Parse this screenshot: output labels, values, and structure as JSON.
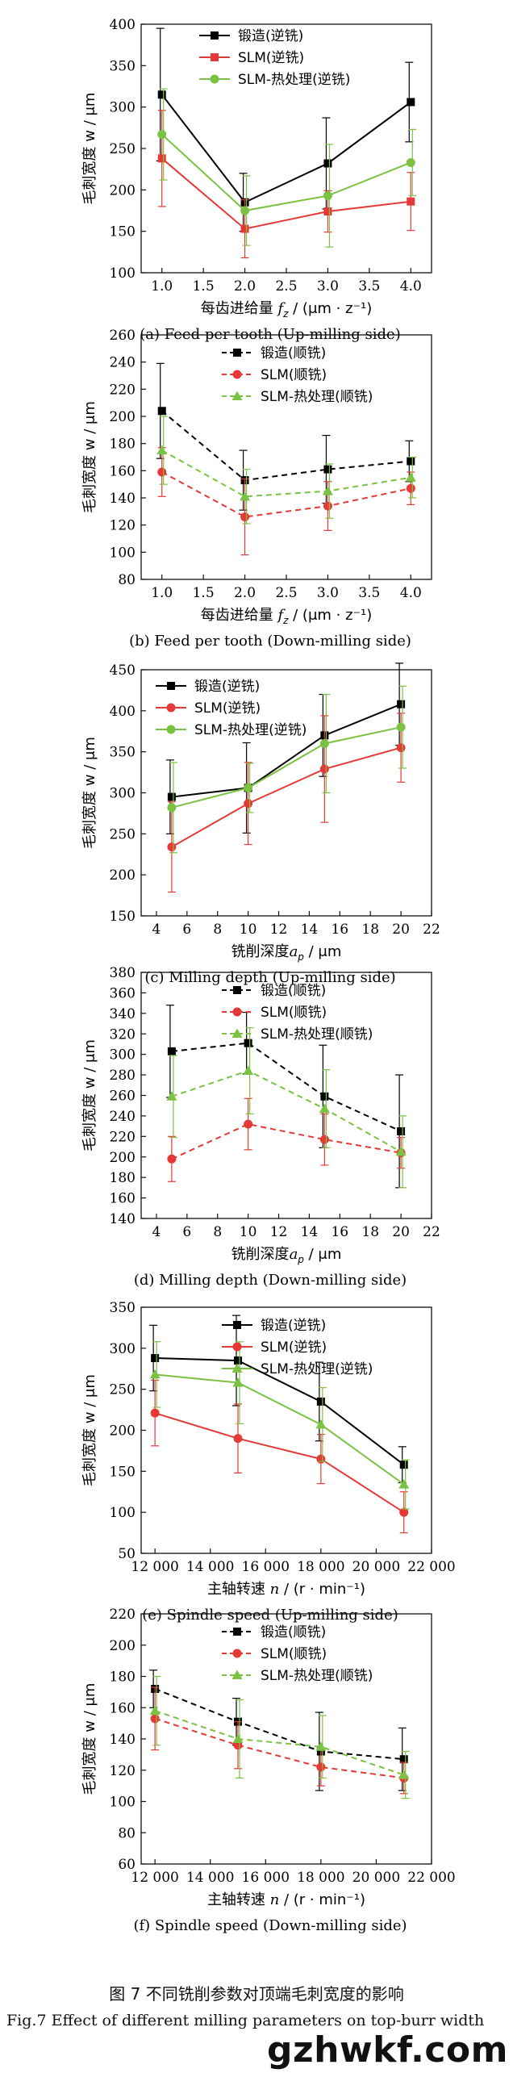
{
  "chart_data": [
    {
      "type": "line",
      "panel": "a",
      "dashed": false,
      "caption": "(a) Feed per tooth (Up-milling side)",
      "ylabel": "毛刺宽度 w / μm",
      "xlabel_pre": "每齿进给量 ",
      "xlabel_sym": "f",
      "xlabel_sub": "z",
      "xlabel_post": " / (μm · z⁻¹)",
      "x": [
        1.0,
        2.0,
        3.0,
        4.0
      ],
      "xlim": [
        0.75,
        4.25
      ],
      "xticks": [
        "1.0",
        "1.5",
        "2.0",
        "2.5",
        "3.0",
        "3.5",
        "4.0"
      ],
      "ylim": [
        100,
        400
      ],
      "yticks": [
        "100",
        "150",
        "200",
        "250",
        "300",
        "350",
        "400"
      ],
      "legend": "top-center",
      "series": [
        {
          "name": "锻造(逆铣)",
          "color": "#000000",
          "marker": "square",
          "values": [
            315,
            185,
            232,
            306
          ],
          "errors": [
            80,
            35,
            55,
            48
          ]
        },
        {
          "name": "SLM(逆铣)",
          "color": "#e53935",
          "marker": "square",
          "values": [
            238,
            153,
            174,
            186
          ],
          "errors": [
            58,
            35,
            25,
            35
          ]
        },
        {
          "name": "SLM-热处理(逆铣)",
          "color": "#7cc242",
          "marker": "circle",
          "values": [
            267,
            175,
            193,
            233
          ],
          "errors": [
            55,
            42,
            62,
            40
          ]
        }
      ]
    },
    {
      "type": "line",
      "panel": "b",
      "dashed": true,
      "caption": "(b) Feed per tooth (Down-milling side)",
      "ylabel": "毛刺宽度 w / μm",
      "xlabel_pre": "每齿进给量 ",
      "xlabel_sym": "f",
      "xlabel_sub": "z",
      "xlabel_post": " / (μm · z⁻¹)",
      "x": [
        1.0,
        2.0,
        3.0,
        4.0
      ],
      "xlim": [
        0.75,
        4.25
      ],
      "xticks": [
        "1.0",
        "1.5",
        "2.0",
        "2.5",
        "3.0",
        "3.5",
        "4.0"
      ],
      "ylim": [
        80,
        260
      ],
      "yticks": [
        "80",
        "100",
        "120",
        "140",
        "160",
        "180",
        "200",
        "220",
        "240",
        "260"
      ],
      "legend": "top-right",
      "series": [
        {
          "name": "锻造(顺铣)",
          "color": "#000000",
          "marker": "square",
          "values": [
            204,
            153,
            161,
            167
          ],
          "errors": [
            35,
            22,
            25,
            15
          ]
        },
        {
          "name": "SLM(顺铣)",
          "color": "#e53935",
          "marker": "circle",
          "values": [
            159,
            126,
            134,
            147
          ],
          "errors": [
            18,
            28,
            18,
            12
          ]
        },
        {
          "name": "SLM-热处理(顺铣)",
          "color": "#7cc242",
          "marker": "triangle",
          "values": [
            175,
            141,
            145,
            155
          ],
          "errors": [
            25,
            20,
            20,
            15
          ]
        }
      ]
    },
    {
      "type": "line",
      "panel": "c",
      "dashed": false,
      "caption": "(c) Milling depth (Up-milling side)",
      "ylabel": "毛刺宽度 w / μm",
      "xlabel_pre": "铣削深度",
      "xlabel_sym": "a",
      "xlabel_sub": "p",
      "xlabel_post": " / μm",
      "x": [
        5,
        10,
        15,
        20
      ],
      "xlim": [
        3,
        22
      ],
      "xticks": [
        "4",
        "6",
        "8",
        "10",
        "12",
        "14",
        "16",
        "18",
        "20",
        "22"
      ],
      "ylim": [
        150,
        450
      ],
      "yticks": [
        "150",
        "200",
        "250",
        "300",
        "350",
        "400",
        "450"
      ],
      "legend": "top-left",
      "series": [
        {
          "name": "锻造(逆铣)",
          "color": "#000000",
          "marker": "square",
          "values": [
            295,
            306,
            370,
            408
          ],
          "errors": [
            45,
            55,
            50,
            50
          ]
        },
        {
          "name": "SLM(逆铣)",
          "color": "#e53935",
          "marker": "circle",
          "values": [
            234,
            287,
            329,
            355
          ],
          "errors": [
            55,
            50,
            65,
            42
          ]
        },
        {
          "name": "SLM-热处理(逆铣)",
          "color": "#7cc242",
          "marker": "circle",
          "values": [
            282,
            306,
            360,
            380
          ],
          "errors": [
            55,
            30,
            60,
            50
          ]
        }
      ]
    },
    {
      "type": "line",
      "panel": "d",
      "dashed": true,
      "caption": "(d) Milling depth (Down-milling side)",
      "ylabel": "毛刺宽度 w / μm",
      "xlabel_pre": "铣削深度",
      "xlabel_sym": "a",
      "xlabel_sub": "p",
      "xlabel_post": " / μm",
      "x": [
        5,
        10,
        15,
        20
      ],
      "xlim": [
        3,
        22
      ],
      "xticks": [
        "4",
        "6",
        "8",
        "10",
        "12",
        "14",
        "16",
        "18",
        "20",
        "22"
      ],
      "ylim": [
        140,
        380
      ],
      "yticks": [
        "140",
        "160",
        "180",
        "200",
        "220",
        "240",
        "260",
        "280",
        "300",
        "320",
        "340",
        "360",
        "380"
      ],
      "legend": "top-right",
      "series": [
        {
          "name": "锻造(顺铣)",
          "color": "#000000",
          "marker": "square",
          "values": [
            303,
            311,
            259,
            225
          ],
          "errors": [
            45,
            30,
            50,
            55
          ]
        },
        {
          "name": "SLM(顺铣)",
          "color": "#e53935",
          "marker": "circle",
          "values": [
            198,
            232,
            217,
            204
          ],
          "errors": [
            22,
            25,
            25,
            15
          ]
        },
        {
          "name": "SLM-热处理(顺铣)",
          "color": "#7cc242",
          "marker": "triangle",
          "values": [
            259,
            284,
            247,
            205
          ],
          "errors": [
            40,
            42,
            38,
            35
          ]
        }
      ]
    },
    {
      "type": "line",
      "panel": "e",
      "dashed": false,
      "caption": "(e) Spindle speed (Up-milling side)",
      "ylabel": "毛刺宽度 w / μm",
      "xlabel_pre": "主轴转速 ",
      "xlabel_sym": "n",
      "xlabel_sub": "",
      "xlabel_post": " / (r · min⁻¹)",
      "x": [
        12000,
        15000,
        18000,
        21000
      ],
      "xlim": [
        11500,
        22000
      ],
      "xticks": [
        "12 000",
        "14 000",
        "16 000",
        "18 000",
        "20 000",
        "22 000"
      ],
      "ylim": [
        50,
        350
      ],
      "yticks": [
        "50",
        "100",
        "150",
        "200",
        "250",
        "300",
        "350"
      ],
      "legend": "top-right",
      "series": [
        {
          "name": "锻造(逆铣)",
          "color": "#000000",
          "marker": "square",
          "values": [
            288,
            285,
            235,
            158
          ],
          "errors": [
            40,
            55,
            48,
            22
          ]
        },
        {
          "name": "SLM(逆铣)",
          "color": "#e53935",
          "marker": "circle",
          "values": [
            221,
            190,
            165,
            100
          ],
          "errors": [
            40,
            42,
            30,
            25
          ]
        },
        {
          "name": "SLM-热处理(逆铣)",
          "color": "#7cc242",
          "marker": "triangle",
          "values": [
            268,
            258,
            207,
            134
          ],
          "errors": [
            40,
            50,
            45,
            30
          ]
        }
      ]
    },
    {
      "type": "line",
      "panel": "f",
      "dashed": true,
      "caption": "(f) Spindle speed (Down-milling side)",
      "ylabel": "毛刺宽度 w / μm",
      "xlabel_pre": "主轴转速 ",
      "xlabel_sym": "n",
      "xlabel_sub": "",
      "xlabel_post": " / (r · min⁻¹)",
      "x": [
        12000,
        15000,
        18000,
        21000
      ],
      "xlim": [
        11500,
        22000
      ],
      "xticks": [
        "12 000",
        "14 000",
        "16 000",
        "18 000",
        "20 000",
        "22 000"
      ],
      "ylim": [
        60,
        220
      ],
      "yticks": [
        "60",
        "80",
        "100",
        "120",
        "140",
        "160",
        "180",
        "200",
        "220"
      ],
      "legend": "top-right",
      "series": [
        {
          "name": "锻造(顺铣)",
          "color": "#000000",
          "marker": "square",
          "values": [
            172,
            151,
            132,
            127
          ],
          "errors": [
            12,
            15,
            25,
            20
          ]
        },
        {
          "name": "SLM(顺铣)",
          "color": "#e53935",
          "marker": "circle",
          "values": [
            153,
            136,
            122,
            115
          ],
          "errors": [
            20,
            15,
            12,
            10
          ]
        },
        {
          "name": "SLM-热处理(顺铣)",
          "color": "#7cc242",
          "marker": "triangle",
          "values": [
            158,
            140,
            135,
            117
          ],
          "errors": [
            22,
            25,
            20,
            15
          ]
        }
      ]
    }
  ],
  "figure_caption_cn": "图 7   不同铣削参数对顶端毛刺宽度的影响",
  "figure_caption_en": "Fig.7   Effect of different milling parameters on top-burr width",
  "watermark": "gzhwkf.com"
}
